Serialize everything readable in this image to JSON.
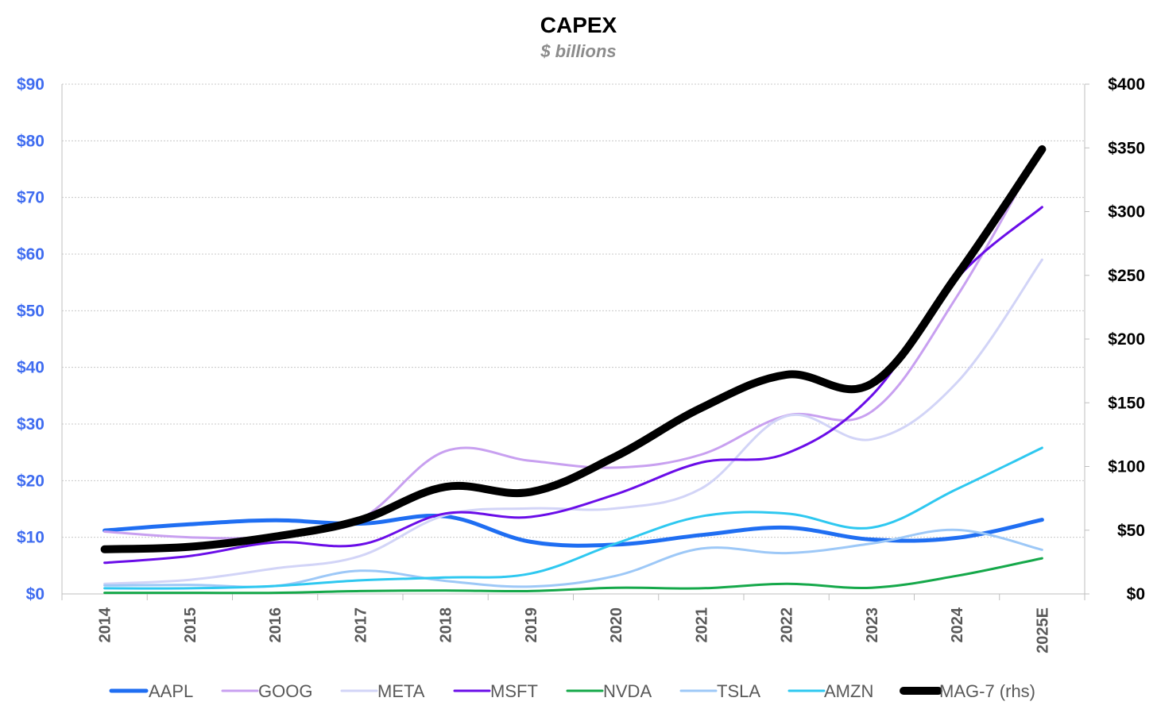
{
  "title": "CAPEX",
  "subtitle": "$ billions",
  "chart_data": {
    "type": "line",
    "title": "CAPEX",
    "subtitle": "$ billions",
    "categories": [
      "2014",
      "2015",
      "2016",
      "2017",
      "2018",
      "2019",
      "2020",
      "2021",
      "2022",
      "2023",
      "2024",
      "2025E"
    ],
    "y_left": {
      "range": [
        0,
        90
      ],
      "ticks": [
        0,
        10,
        20,
        30,
        40,
        50,
        60,
        70,
        80,
        90
      ],
      "tick_labels": [
        "$0",
        "$10",
        "$20",
        "$30",
        "$40",
        "$50",
        "$60",
        "$70",
        "$80",
        "$90"
      ]
    },
    "y_right": {
      "range": [
        0,
        400
      ],
      "ticks": [
        0,
        50,
        100,
        150,
        200,
        250,
        300,
        350,
        400
      ],
      "tick_labels": [
        "$0",
        "$50",
        "$100",
        "$150",
        "$200",
        "$250",
        "$300",
        "$350",
        "$400"
      ]
    },
    "grid": true,
    "legend_position": "bottom",
    "series": [
      {
        "name": "AAPL",
        "axis": "left",
        "color": "#1f6ef2",
        "width": 5,
        "values": [
          11.2,
          12.3,
          13.0,
          12.4,
          13.7,
          9.2,
          8.7,
          10.4,
          11.7,
          9.6,
          9.9,
          13.1
        ]
      },
      {
        "name": "GOOG",
        "axis": "left",
        "color": "#c8a0f0",
        "width": 3,
        "values": [
          11.0,
          10.0,
          10.2,
          13.2,
          25.2,
          23.5,
          22.3,
          24.6,
          31.5,
          32.2,
          52.5,
          79.0
        ]
      },
      {
        "name": "META",
        "axis": "left",
        "color": "#d2d4f7",
        "width": 3,
        "values": [
          1.8,
          2.5,
          4.5,
          6.7,
          13.9,
          15.1,
          15.1,
          18.6,
          31.4,
          27.3,
          37.3,
          59.0
        ]
      },
      {
        "name": "MSFT",
        "axis": "left",
        "color": "#6a0de8",
        "width": 3,
        "values": [
          5.5,
          6.7,
          9.1,
          8.7,
          14.2,
          13.6,
          17.6,
          23.2,
          24.8,
          35.0,
          55.7,
          68.3
        ]
      },
      {
        "name": "NVDA",
        "axis": "left",
        "color": "#15a84a",
        "width": 3,
        "values": [
          0.2,
          0.2,
          0.2,
          0.5,
          0.6,
          0.5,
          1.1,
          1.0,
          1.8,
          1.1,
          3.2,
          6.3
        ]
      },
      {
        "name": "TSLA",
        "axis": "left",
        "color": "#9dc8f7",
        "width": 3,
        "values": [
          1.5,
          1.6,
          1.4,
          4.1,
          2.3,
          1.3,
          3.2,
          8.0,
          7.2,
          8.9,
          11.3,
          7.8
        ]
      },
      {
        "name": "AMZN",
        "axis": "left",
        "color": "#2ec8f0",
        "width": 3,
        "values": [
          1.0,
          1.0,
          1.4,
          2.4,
          2.9,
          3.6,
          8.9,
          13.7,
          14.2,
          11.7,
          18.5,
          25.8
        ]
      },
      {
        "name": "MAG-7 (rhs)",
        "axis": "right",
        "color": "#000000",
        "width": 10,
        "values": [
          35,
          37,
          45,
          58,
          84,
          80,
          108,
          146,
          172,
          165,
          250,
          349
        ]
      }
    ]
  }
}
